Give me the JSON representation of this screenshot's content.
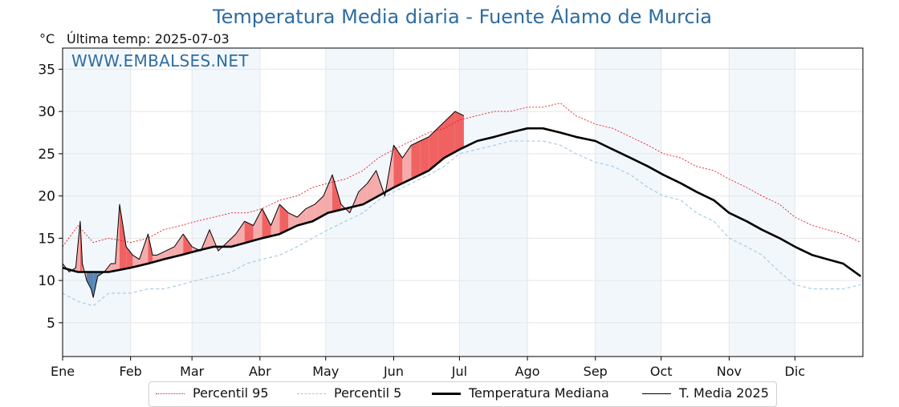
{
  "title": "Temperatura Media diaria - Fuente Álamo de Murcia",
  "unit": "°C",
  "last_temp_label": "Última temp: 2025-07-03",
  "watermark": "WWW.EMBALSES.NET",
  "colors": {
    "p95": "#e41a1c",
    "p5": "#9ecae1",
    "median": "#000000",
    "media2025": "#000000",
    "above_fill": "#f4a6a6",
    "above_fill_strong": "#ef5a5a",
    "below_fill": "#4f7fb0",
    "band": "#f2f7fc",
    "title": "#2e6ca1"
  },
  "legend": [
    {
      "label": "Percentil 95",
      "style": "dotted",
      "color": "#e41a1c"
    },
    {
      "label": "Percentil 5",
      "style": "dashed",
      "color": "#9ecae1"
    },
    {
      "label": "Temperatura Mediana",
      "style": "thick",
      "color": "#000000"
    },
    {
      "label": "T. Media 2025",
      "style": "thin",
      "color": "#000000"
    }
  ],
  "chart_data": {
    "type": "line",
    "title": "Temperatura Media diaria - Fuente Álamo de Murcia",
    "ylabel": "°C",
    "xlabel": "",
    "ylim": [
      1,
      37.5
    ],
    "xlim": [
      1,
      366
    ],
    "yticks": [
      5,
      10,
      15,
      20,
      25,
      30,
      35
    ],
    "month_labels": [
      "Ene",
      "Feb",
      "Mar",
      "Abr",
      "May",
      "Jun",
      "Jul",
      "Ago",
      "Sep",
      "Oct",
      "Nov",
      "Dic"
    ],
    "month_start_days": [
      1,
      32,
      60,
      91,
      121,
      152,
      182,
      213,
      244,
      274,
      305,
      335
    ],
    "grid": true,
    "legend_position": "bottom-center",
    "series": [
      {
        "name": "Percentil 95",
        "x": [
          1,
          8,
          15,
          22,
          32,
          40,
          47,
          55,
          62,
          70,
          78,
          85,
          92,
          100,
          108,
          115,
          122,
          130,
          138,
          145,
          152,
          160,
          168,
          175,
          182,
          190,
          198,
          205,
          213,
          220,
          228,
          235,
          244,
          252,
          260,
          268,
          275,
          283,
          290,
          298,
          305,
          313,
          320,
          328,
          335,
          343,
          350,
          357,
          365
        ],
        "y": [
          14,
          16.5,
          14.5,
          15,
          14.5,
          15,
          16,
          16.5,
          17,
          17.5,
          18,
          18,
          18.5,
          19.5,
          20,
          21,
          21.5,
          22,
          23,
          24.5,
          25.5,
          26.5,
          27.5,
          28,
          29,
          29.5,
          30,
          30,
          30.5,
          30.5,
          31,
          29.5,
          28.5,
          28,
          27,
          26,
          25,
          24.5,
          23.5,
          23,
          22,
          21,
          20,
          19,
          17.5,
          16.5,
          16,
          15.5,
          14.5
        ]
      },
      {
        "name": "Percentil 5",
        "x": [
          1,
          8,
          15,
          22,
          32,
          40,
          47,
          55,
          62,
          70,
          78,
          85,
          92,
          100,
          108,
          115,
          122,
          130,
          138,
          145,
          152,
          160,
          168,
          175,
          182,
          190,
          198,
          205,
          213,
          220,
          228,
          235,
          244,
          252,
          260,
          268,
          275,
          283,
          290,
          298,
          305,
          313,
          320,
          328,
          335,
          343,
          350,
          357,
          365
        ],
        "y": [
          8.5,
          7.5,
          7,
          8.5,
          8.5,
          9,
          9,
          9.5,
          10,
          10.5,
          11,
          12,
          12.5,
          13,
          14,
          15,
          16,
          17,
          18,
          19.5,
          20.5,
          21.5,
          22.5,
          23.5,
          25,
          25.5,
          26,
          26.5,
          26.5,
          26.5,
          26,
          25,
          24,
          23.5,
          22.5,
          21,
          20,
          19.5,
          18,
          17,
          15,
          14,
          13,
          11,
          9.5,
          9,
          9,
          9,
          9.5
        ]
      },
      {
        "name": "Temperatura Mediana",
        "x": [
          1,
          8,
          15,
          22,
          32,
          40,
          47,
          55,
          62,
          70,
          78,
          85,
          92,
          100,
          108,
          115,
          122,
          130,
          138,
          145,
          152,
          160,
          168,
          175,
          182,
          190,
          198,
          205,
          213,
          220,
          228,
          235,
          244,
          252,
          260,
          268,
          275,
          283,
          290,
          298,
          305,
          313,
          320,
          328,
          335,
          343,
          350,
          357,
          365
        ],
        "y": [
          11.5,
          11,
          11,
          11,
          11.5,
          12,
          12.5,
          13,
          13.5,
          14,
          14,
          14.5,
          15,
          15.5,
          16.5,
          17,
          18,
          18.5,
          19,
          20,
          21,
          22,
          23,
          24.5,
          25.5,
          26.5,
          27,
          27.5,
          28,
          28,
          27.5,
          27,
          26.5,
          25.5,
          24.5,
          23.5,
          22.5,
          21.5,
          20.5,
          19.5,
          18,
          17,
          16,
          15,
          14,
          13,
          12.5,
          12,
          10.5
        ]
      },
      {
        "name": "T. Media 2025",
        "x": [
          1,
          4,
          7,
          9,
          10,
          12,
          14,
          15,
          17,
          20,
          23,
          25,
          27,
          30,
          33,
          36,
          40,
          42,
          44,
          48,
          52,
          56,
          60,
          64,
          68,
          72,
          76,
          80,
          84,
          88,
          92,
          96,
          100,
          104,
          108,
          112,
          116,
          120,
          124,
          128,
          132,
          136,
          140,
          144,
          148,
          152,
          156,
          160,
          164,
          168,
          172,
          176,
          180,
          184
        ],
        "y": [
          12,
          11,
          11.5,
          17,
          12,
          10,
          9,
          8,
          10.5,
          11,
          12,
          12,
          19,
          14,
          13,
          12.5,
          15.5,
          13,
          13,
          13.5,
          14,
          15.5,
          14,
          13.5,
          16,
          13.5,
          14.5,
          15.5,
          17,
          16.5,
          18.5,
          16.5,
          19,
          18,
          17.5,
          18.5,
          19,
          20,
          22.5,
          19,
          18,
          20.5,
          21.5,
          23,
          20,
          26,
          24.5,
          26,
          26.5,
          27,
          28,
          29,
          30,
          29.5
        ]
      }
    ]
  }
}
